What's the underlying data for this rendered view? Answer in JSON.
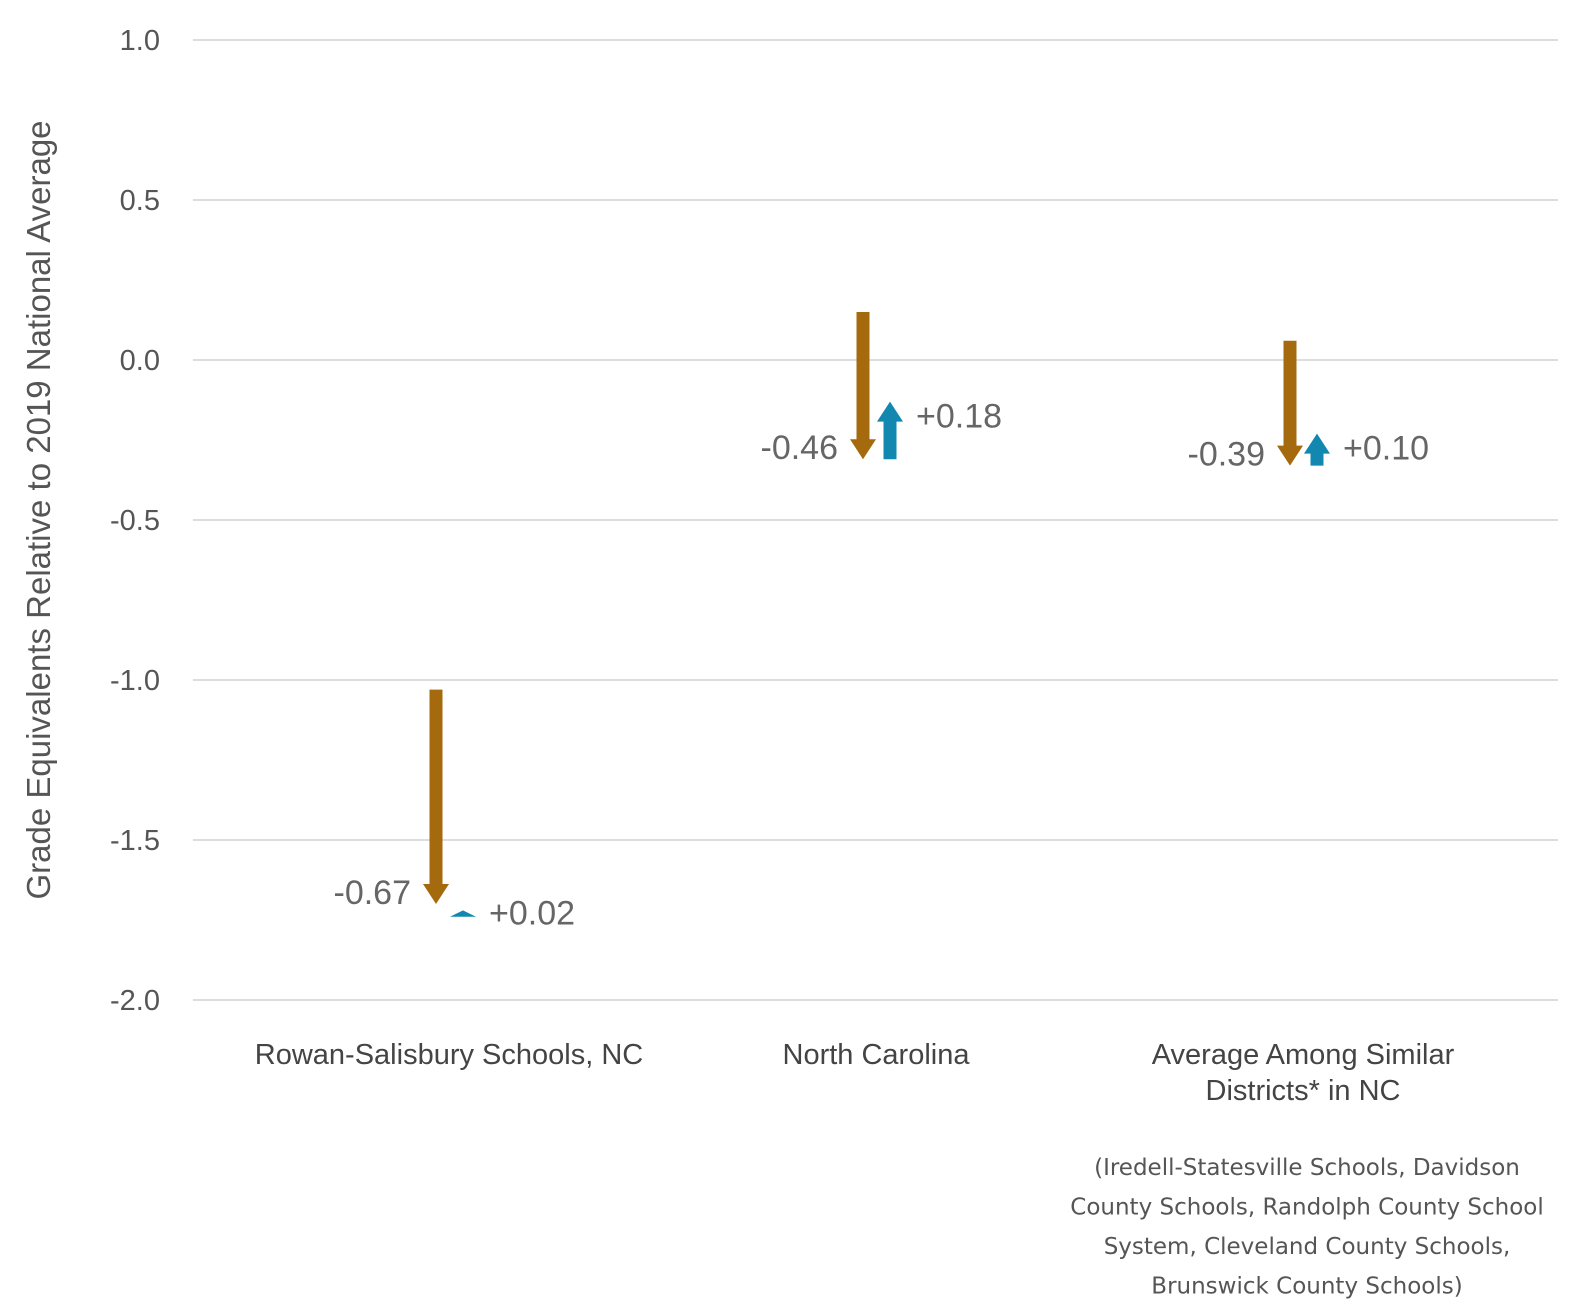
{
  "chart_data": {
    "type": "arrow",
    "title": "",
    "xlabel": "",
    "ylabel": "Grade Equivalents Relative to 2019 National Average",
    "ylim": [
      -2.0,
      1.0
    ],
    "yticks": [
      1.0,
      0.5,
      0.0,
      -0.5,
      -1.0,
      -1.5,
      -2.0
    ],
    "ytick_labels": [
      "1.0",
      "0.5",
      "0.0",
      "-0.5",
      "-1.0",
      "-1.5",
      "-2.0"
    ],
    "grid": true,
    "colors": {
      "decline": "#A66A0E",
      "recovery": "#1288B0"
    },
    "categories": [
      {
        "label_lines": [
          "Rowan-Salisbury Schools, NC"
        ],
        "note_lines": [],
        "decline": {
          "start": -1.03,
          "end": -1.7,
          "label": "-0.67"
        },
        "recovery": {
          "start": -1.74,
          "end": -1.72,
          "label": "+0.02"
        }
      },
      {
        "label_lines": [
          "North Carolina"
        ],
        "note_lines": [],
        "decline": {
          "start": 0.15,
          "end": -0.31,
          "label": "-0.46"
        },
        "recovery": {
          "start": -0.31,
          "end": -0.13,
          "label": "+0.18"
        }
      },
      {
        "label_lines": [
          "Average Among Similar",
          "Districts* in NC"
        ],
        "note_lines": [
          "(Iredell-Statesville Schools, Davidson",
          "County Schools, Randolph County School",
          "System, Cleveland County Schools,",
          "Brunswick County Schools)"
        ],
        "decline": {
          "start": 0.06,
          "end": -0.33,
          "label": "-0.39"
        },
        "recovery": {
          "start": -0.33,
          "end": -0.23,
          "label": "+0.10"
        }
      }
    ]
  }
}
